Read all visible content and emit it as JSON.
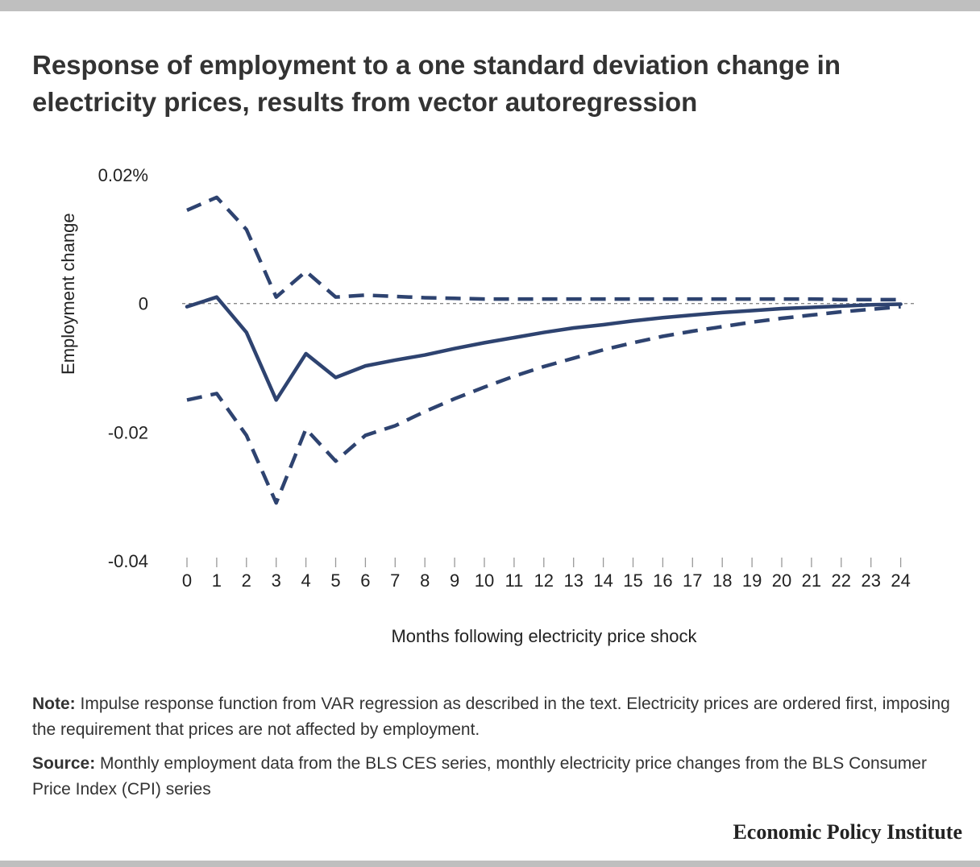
{
  "title": "Response of employment to a one standard deviation change in electricity prices, results from vector autoregression",
  "note_label": "Note:",
  "note_text": "Impulse response function from VAR regression as described in the text. Electricity prices are ordered first, imposing the requirement that prices are not affected by employment.",
  "source_label": "Source:",
  "source_text": "Monthly employment data from the BLS CES series, monthly electricity price changes from the BLS Consumer Price Index (CPI) series",
  "brand": "Economic Policy Institute",
  "chart_data": {
    "type": "line",
    "xlabel": "Months following electricity price shock",
    "ylabel": "Employment change",
    "x": [
      0,
      1,
      2,
      3,
      4,
      5,
      6,
      7,
      8,
      9,
      10,
      11,
      12,
      13,
      14,
      15,
      16,
      17,
      18,
      19,
      20,
      21,
      22,
      23,
      24
    ],
    "ylim": [
      -0.04,
      0.02
    ],
    "yticks": [
      0.02,
      0,
      -0.02,
      -0.04
    ],
    "ytick_labels": [
      "0.02%",
      "0",
      "-0.02",
      "-0.04"
    ],
    "zero_line": true,
    "color": "#2e4370",
    "series": [
      {
        "style": "solid",
        "values": [
          -0.0005,
          0.001,
          -0.0045,
          -0.015,
          -0.0078,
          -0.0115,
          -0.0097,
          -0.0088,
          -0.008,
          -0.007,
          -0.0061,
          -0.0053,
          -0.0045,
          -0.0038,
          -0.0033,
          -0.0027,
          -0.0022,
          -0.0018,
          -0.0014,
          -0.0011,
          -0.0008,
          -0.0006,
          -0.0004,
          -0.0002,
          -0.0001
        ]
      },
      {
        "style": "dashed",
        "values": [
          0.0145,
          0.0165,
          0.0115,
          0.001,
          0.005,
          0.001,
          0.0013,
          0.0011,
          0.0009,
          0.0008,
          0.0007,
          0.0007,
          0.0007,
          0.0007,
          0.0007,
          0.0007,
          0.0007,
          0.0007,
          0.0007,
          0.0007,
          0.0007,
          0.0007,
          0.0006,
          0.0006,
          0.0006
        ]
      },
      {
        "style": "dashed",
        "values": [
          -0.015,
          -0.014,
          -0.0205,
          -0.031,
          -0.0195,
          -0.0245,
          -0.0205,
          -0.019,
          -0.0168,
          -0.0148,
          -0.013,
          -0.0113,
          -0.0098,
          -0.0085,
          -0.0072,
          -0.0061,
          -0.0051,
          -0.0043,
          -0.0036,
          -0.0029,
          -0.0023,
          -0.0018,
          -0.0013,
          -0.0009,
          -0.0005
        ]
      }
    ]
  }
}
